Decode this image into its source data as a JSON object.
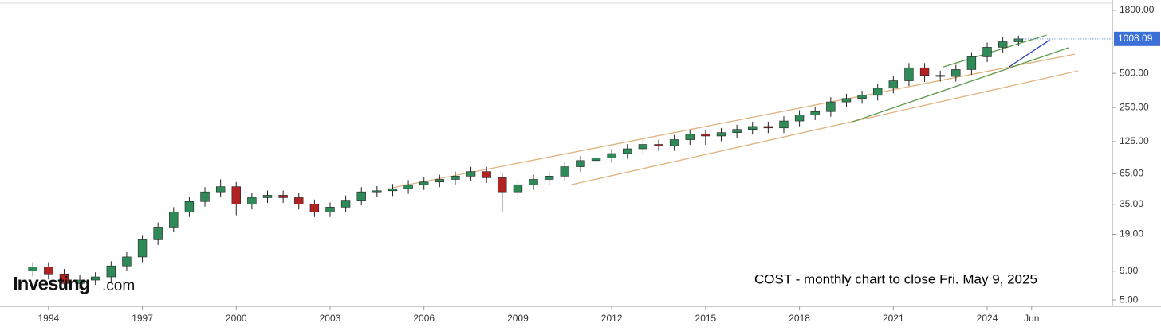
{
  "chart_data": {
    "type": "candlestick",
    "annotation": "COST - monthly chart to close Fri. May 9, 2025",
    "logo": {
      "name": "Investing",
      "domain": ".com"
    },
    "log_scale": true,
    "up_color": "#2e8b57",
    "down_color": "#b22222",
    "x": [
      1993.5,
      1994.0,
      1994.5,
      1995.0,
      1995.5,
      1996.0,
      1996.5,
      1997.0,
      1997.5,
      1998.0,
      1998.5,
      1999.0,
      1999.5,
      2000.0,
      2000.5,
      2001.0,
      2001.5,
      2002.0,
      2002.5,
      2003.0,
      2003.5,
      2004.0,
      2004.5,
      2005.0,
      2005.5,
      2006.0,
      2006.5,
      2007.0,
      2007.5,
      2008.0,
      2008.5,
      2009.0,
      2009.5,
      2010.0,
      2010.5,
      2011.0,
      2011.5,
      2012.0,
      2012.5,
      2013.0,
      2013.5,
      2014.0,
      2014.5,
      2015.0,
      2015.5,
      2016.0,
      2016.5,
      2017.0,
      2017.5,
      2018.0,
      2018.5,
      2019.0,
      2019.5,
      2020.0,
      2020.5,
      2021.0,
      2021.5,
      2022.0,
      2022.5,
      2023.0,
      2023.5,
      2024.0,
      2024.5,
      2025.0
    ],
    "open": [
      9,
      9.8,
      8.5,
      7,
      7.5,
      8,
      10,
      12,
      17,
      22,
      30,
      37,
      45,
      50,
      35,
      40,
      42,
      40,
      35,
      30,
      33,
      38,
      45,
      46,
      48,
      52,
      55,
      58,
      62,
      68,
      60,
      45,
      52,
      58,
      62,
      75,
      85,
      90,
      98,
      108,
      118,
      115,
      130,
      145,
      140,
      150,
      160,
      170,
      165,
      190,
      215,
      230,
      280,
      300,
      320,
      370,
      430,
      560,
      480,
      470,
      540,
      700,
      850,
      950
    ],
    "high": [
      10.8,
      10.8,
      9.4,
      8.3,
      8.8,
      11,
      13.2,
      18.7,
      24.2,
      33,
      40.7,
      49.5,
      58,
      55,
      44,
      46.2,
      46.2,
      44,
      38.5,
      36.3,
      41.8,
      49.5,
      50.6,
      52.8,
      57.2,
      60.5,
      63.8,
      68.2,
      74.8,
      74.8,
      66,
      57.2,
      63.8,
      68.2,
      82.5,
      93.5,
      99,
      107.8,
      118.8,
      129.8,
      129.8,
      143,
      159.5,
      159.5,
      165,
      176,
      187,
      187,
      209,
      236.5,
      253,
      308,
      330,
      352,
      407,
      473,
      616,
      616,
      528,
      594,
      770,
      935,
      1045,
      1078
    ],
    "low": [
      8.1,
      7.6,
      6.3,
      6.3,
      6.8,
      7.2,
      9,
      10.8,
      15.3,
      19.8,
      27,
      33.3,
      40.5,
      28,
      31.5,
      36,
      36,
      31.5,
      27,
      27,
      29.7,
      34.2,
      40.5,
      41.4,
      43.2,
      46.8,
      49.5,
      52.2,
      55.8,
      54,
      30,
      38,
      46.8,
      52.2,
      55.8,
      67.5,
      76.5,
      81,
      88.2,
      97.2,
      103.5,
      103.5,
      117,
      117,
      126,
      135,
      144,
      148.5,
      148.5,
      171,
      193.5,
      207,
      252,
      270,
      288,
      333,
      387,
      420,
      423,
      423,
      486,
      630,
      765,
      870
    ],
    "close": [
      9.8,
      8.5,
      7,
      7.5,
      8,
      10,
      12,
      17,
      22,
      30,
      37,
      45,
      50,
      35,
      40,
      42,
      40,
      35,
      30,
      33,
      38,
      45,
      46,
      48,
      52,
      55,
      58,
      62,
      68,
      60,
      45,
      52,
      58,
      62,
      75,
      85,
      90,
      98,
      108,
      118,
      115,
      130,
      145,
      140,
      150,
      160,
      170,
      165,
      190,
      215,
      230,
      280,
      300,
      320,
      370,
      430,
      560,
      480,
      470,
      540,
      700,
      850,
      950,
      1008.09
    ],
    "last_price": 1008.09,
    "last_price_color": "#3d6fd8",
    "xlim": [
      1992.45,
      2028.0
    ],
    "ylim": [
      4.4,
      2220
    ],
    "xticks": [
      1994,
      1997,
      2000,
      2003,
      2006,
      2009,
      2012,
      2015,
      2018,
      2021,
      2024,
      {
        "value": 2025.42,
        "label": "Jun"
      }
    ],
    "yticks": [
      {
        "value": 5,
        "label": "5.00"
      },
      {
        "value": 9,
        "label": "9.00"
      },
      {
        "value": 19,
        "label": "19.00"
      },
      {
        "value": 35,
        "label": "35.00"
      },
      {
        "value": 65,
        "label": "65.00"
      },
      {
        "value": 125,
        "label": "125.00"
      },
      {
        "value": 250,
        "label": "250.00"
      },
      {
        "value": 500,
        "label": "500.00"
      },
      {
        "value": 1800,
        "label": "1800.00"
      }
    ],
    "trendlines": [
      {
        "color": "#e0b27e",
        "x": [
          2005.0,
          2026.8
        ],
        "y": [
          49,
          738
        ]
      },
      {
        "color": "#e0b27e",
        "x": [
          2010.7,
          2026.9
        ],
        "y": [
          52,
          526
        ]
      },
      {
        "color": "#5a9a4a",
        "x": [
          2019.7,
          2026.6
        ],
        "y": [
          187,
          841
        ]
      },
      {
        "color": "#5a9a4a",
        "x": [
          2022.6,
          2025.9
        ],
        "y": [
          570,
          1089
        ]
      },
      {
        "color": "#2b3fb8",
        "x": [
          2024.7,
          2026.0
        ],
        "y": [
          570,
          988
        ]
      }
    ]
  }
}
